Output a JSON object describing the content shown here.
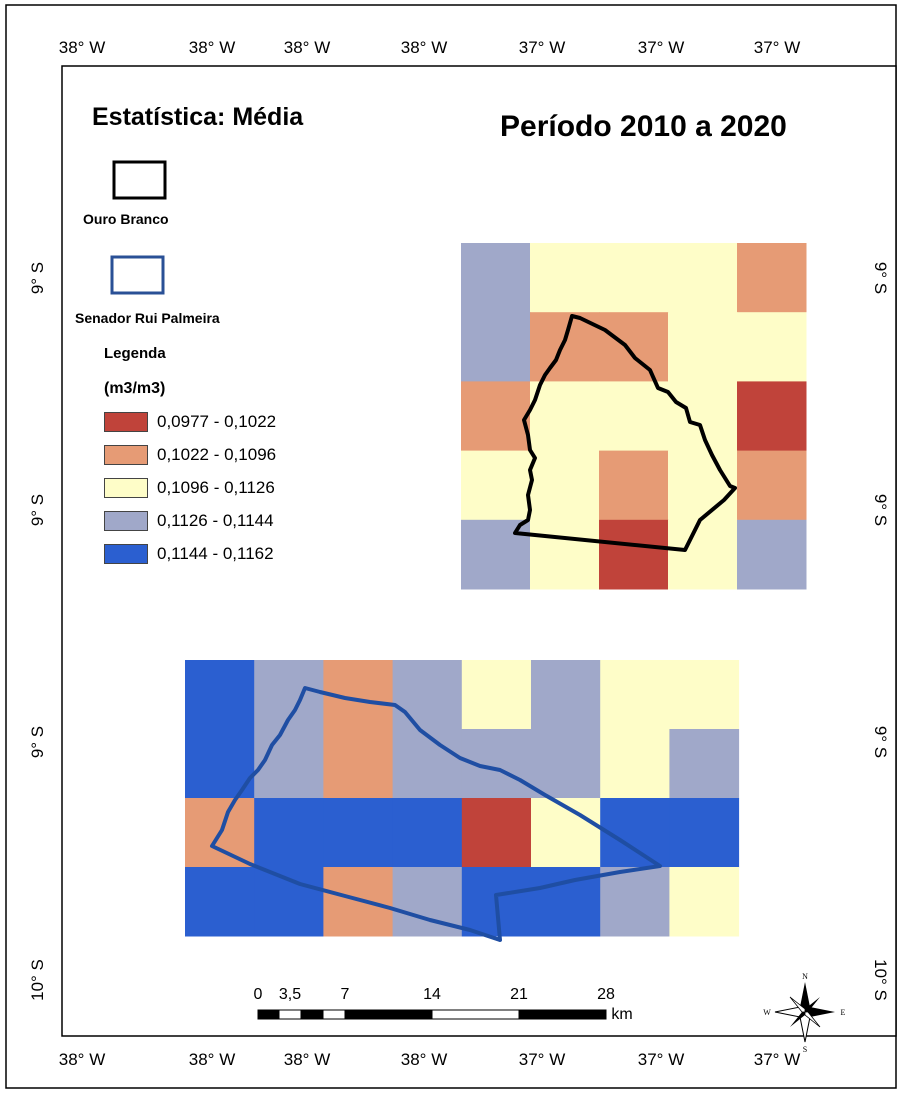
{
  "title": "Estatística: Média",
  "period": "Período 2010 a 2020",
  "axes": {
    "top": [
      "38° W",
      "38° W",
      "38° W",
      "38° W",
      "37° W",
      "37° W",
      "37° W"
    ],
    "bottom": [
      "38° W",
      "38° W",
      "38° W",
      "38° W",
      "37° W",
      "37° W",
      "37° W"
    ],
    "left": [
      "9° S",
      "9° S",
      "9° S",
      "10° S"
    ],
    "right": [
      "9° S",
      "9° S",
      "9° S",
      "10° S"
    ]
  },
  "boundaries": [
    {
      "label": "Ouro Branco",
      "color": "#000000"
    },
    {
      "label": "Senador Rui Palmeira",
      "color": "#2a5096"
    }
  ],
  "legend": {
    "title": "Legenda",
    "unit": "(m3/m3)",
    "classes": [
      {
        "label": "0,0977 - 0,1022",
        "color": "#c0433a"
      },
      {
        "label": "0,1022 - 0,1096",
        "color": "#e69b75"
      },
      {
        "label": "0,1096 - 0,1126",
        "color": "#fefdc8"
      },
      {
        "label": "0,1126 - 0,1144",
        "color": "#a0a8c9"
      },
      {
        "label": "0,1144 - 0,1162",
        "color": "#2b5fd0"
      }
    ]
  },
  "grids": [
    {
      "name": "ouro-branco",
      "rows": [
        [
          3,
          2,
          2,
          2,
          1
        ],
        [
          3,
          1,
          1,
          2,
          2
        ],
        [
          1,
          2,
          2,
          2,
          0
        ],
        [
          2,
          2,
          1,
          2,
          1
        ],
        [
          3,
          2,
          0,
          2,
          3
        ]
      ]
    },
    {
      "name": "senador-rui-palmeira",
      "rows": [
        [
          4,
          3,
          1,
          3,
          2,
          3,
          2,
          2
        ],
        [
          4,
          3,
          1,
          3,
          3,
          3,
          2,
          3
        ],
        [
          1,
          4,
          4,
          4,
          0,
          2,
          4,
          4
        ],
        [
          4,
          4,
          1,
          3,
          4,
          4,
          3,
          2
        ]
      ]
    }
  ],
  "scalebar": {
    "ticks": [
      "0",
      "3,5",
      "7",
      "14",
      "21",
      "28"
    ],
    "unit": "km"
  },
  "compass": {
    "n": "N",
    "s": "S",
    "e": "E",
    "w": "W"
  }
}
